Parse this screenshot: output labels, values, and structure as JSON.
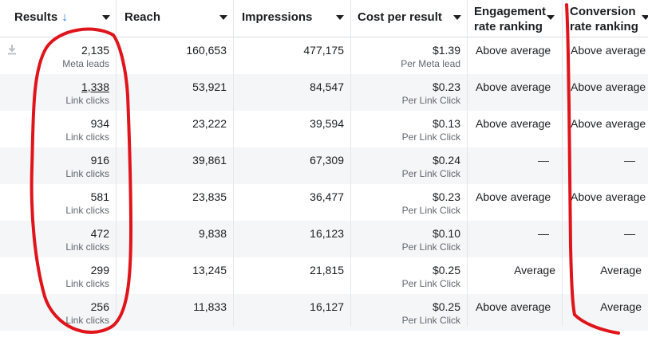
{
  "columns": [
    {
      "id": "results",
      "label": "Results",
      "sort_icon": "arrow-down-icon"
    },
    {
      "id": "reach",
      "label": "Reach"
    },
    {
      "id": "impressions",
      "label": "Impressions"
    },
    {
      "id": "cost",
      "label": "Cost per result"
    },
    {
      "id": "engagement",
      "label_line1": "Engagement",
      "label_line2": "rate ranking"
    },
    {
      "id": "conversion",
      "label_line1": "Conversion",
      "label_line2": "rate ranking"
    }
  ],
  "rows": [
    {
      "results": "2,135",
      "results_sub": "Meta leads",
      "reach": "160,653",
      "impressions": "477,175",
      "cost": "$1.39",
      "cost_sub": "Per Meta lead",
      "engagement": "Above average",
      "conversion": "Above average"
    },
    {
      "results": "1,338",
      "results_sub": "Link clicks",
      "reach": "53,921",
      "impressions": "84,547",
      "cost": "$0.23",
      "cost_sub": "Per Link Click",
      "engagement": "Above average",
      "conversion": "Above average"
    },
    {
      "results": "934",
      "results_sub": "Link clicks",
      "reach": "23,222",
      "impressions": "39,594",
      "cost": "$0.13",
      "cost_sub": "Per Link Click",
      "engagement": "Above average",
      "conversion": "Above average"
    },
    {
      "results": "916",
      "results_sub": "Link clicks",
      "reach": "39,861",
      "impressions": "67,309",
      "cost": "$0.24",
      "cost_sub": "Per Link Click",
      "engagement": "—",
      "conversion": "—"
    },
    {
      "results": "581",
      "results_sub": "Link clicks",
      "reach": "23,835",
      "impressions": "36,477",
      "cost": "$0.23",
      "cost_sub": "Per Link Click",
      "engagement": "Above average",
      "conversion": "Above average"
    },
    {
      "results": "472",
      "results_sub": "Link clicks",
      "reach": "9,838",
      "impressions": "16,123",
      "cost": "$0.10",
      "cost_sub": "Per Link Click",
      "engagement": "—",
      "conversion": "—"
    },
    {
      "results": "299",
      "results_sub": "Link clicks",
      "reach": "13,245",
      "impressions": "21,815",
      "cost": "$0.25",
      "cost_sub": "Per Link Click",
      "engagement": "Average",
      "conversion": "Average"
    },
    {
      "results": "256",
      "results_sub": "Link clicks",
      "reach": "11,833",
      "impressions": "16,127",
      "cost": "$0.25",
      "cost_sub": "Per Link Click",
      "engagement": "Above average",
      "conversion": "Average"
    }
  ],
  "colors": {
    "accent": "#1877f2",
    "annotation": "#e0141b",
    "row_alt": "#f5f6f7"
  },
  "row_icon": "download-icon"
}
